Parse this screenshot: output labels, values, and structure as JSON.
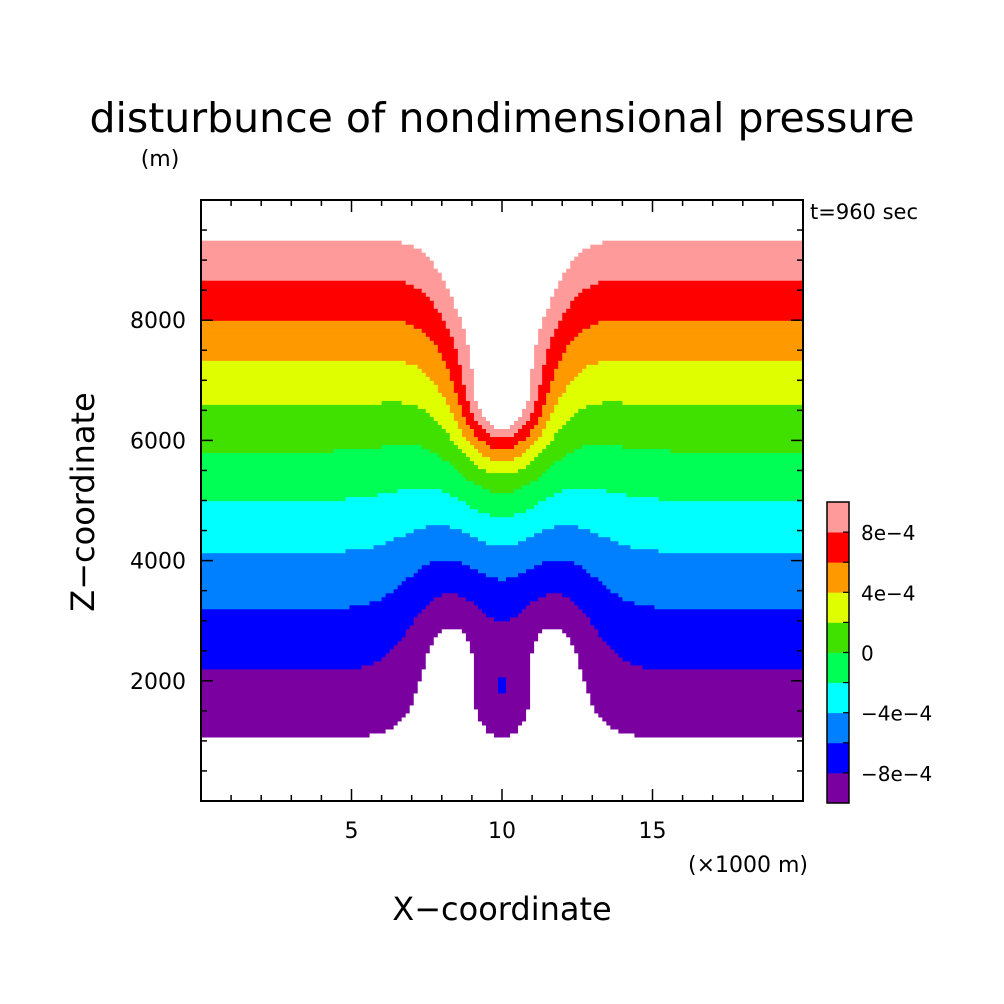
{
  "chart_data": {
    "type": "heatmap",
    "title": "disturbunce of nondimensional pressure",
    "ylabel_unit": "(m)",
    "xlabel": "X−coordinate",
    "xlabel_unit": "(×1000 m)",
    "ylabel": "Z−coordinate",
    "annotation": "t=960 sec",
    "xlim": [
      0,
      20
    ],
    "ylim": [
      0,
      10000
    ],
    "x_ticks": [
      5,
      10,
      15
    ],
    "x_tick_labels": [
      "5",
      "10",
      "15"
    ],
    "y_ticks": [
      2000,
      4000,
      6000,
      8000
    ],
    "y_tick_labels": [
      "2000",
      "4000",
      "6000",
      "8000"
    ],
    "contour_levels": [
      -0.001,
      -0.0008,
      -0.0006,
      -0.0004,
      -0.0002,
      0,
      0.0002,
      0.0004,
      0.0006,
      0.0008,
      0.001
    ],
    "colorbar": {
      "colors": [
        "#7a00a0",
        "#0000ff",
        "#0080ff",
        "#00ffff",
        "#00ff55",
        "#40e000",
        "#dfff00",
        "#ff9900",
        "#ff0000",
        "#ff9a9a"
      ],
      "tick_values": [
        -0.0008,
        -0.0004,
        0,
        0.0004,
        0.0008
      ],
      "tick_labels": [
        "−8e−4",
        "−4e−4",
        "0",
        "4e−4",
        "8e−4"
      ],
      "low_fill": "#ffffff",
      "high_fill": "#ffffff"
    }
  }
}
